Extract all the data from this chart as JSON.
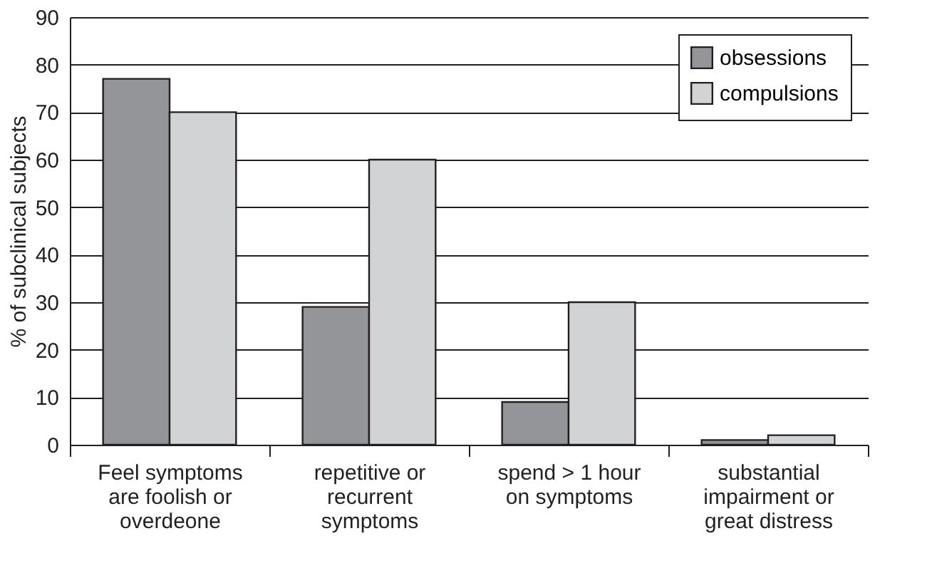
{
  "chart_data": {
    "type": "bar",
    "ylabel": "% of subclinical subjects",
    "categories": [
      "Feel symptoms are foolish or overdeone",
      "repetitive or recurrent symptoms",
      "spend > 1 hour on symptoms",
      "substantial impairment or great distress"
    ],
    "series": [
      {
        "name": "obsessions",
        "color": "#939598",
        "values": [
          77,
          29,
          9,
          1
        ]
      },
      {
        "name": "compulsions",
        "color": "#d1d3d4",
        "values": [
          70,
          60,
          30,
          2
        ]
      }
    ],
    "ylim": [
      0,
      90
    ],
    "yticks": [
      0,
      10,
      20,
      30,
      40,
      50,
      60,
      70,
      80,
      90
    ],
    "grid": "y",
    "legend": "top right"
  }
}
